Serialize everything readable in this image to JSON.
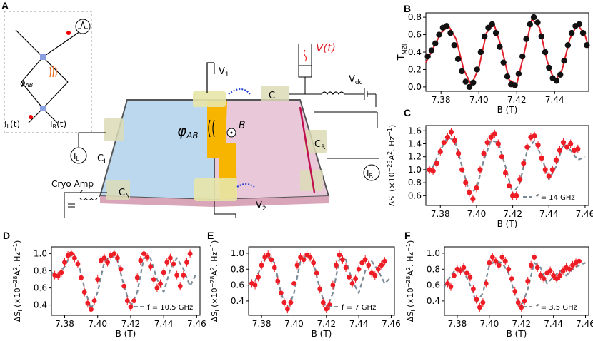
{
  "panel_labels": {
    "A": "A",
    "B": "B",
    "C": "C",
    "D": "D",
    "E": "E",
    "F": "F"
  },
  "schematic": {
    "phi_ab": "φ",
    "phi_ab_sub": "AB",
    "vphi": "φ",
    "vphi_sub": "AB",
    "B_vec": "B",
    "V1": "V",
    "V1_sub": "1",
    "V2": "V",
    "V2_sub": "2",
    "Vdc": "V",
    "Vdc_sub": "dc",
    "Vt": "V(t)",
    "CI": "C",
    "CI_sub": "I",
    "CL": "C",
    "CL_sub": "L",
    "CR": "C",
    "CR_sub": "R",
    "CN": "C",
    "CN_sub": "N",
    "IL": "I",
    "IL_sub": "L",
    "IR": "I",
    "IR_sub": "R",
    "ILt": "I",
    "ILt_sub": "L",
    "ILt_suffix": "(t)",
    "IRt": "I",
    "IRt_sub": "R",
    "IRt_suffix": "(t)",
    "cryo_amp": "Cryo Amp"
  },
  "chart_data": [
    {
      "id": "B",
      "type": "scatter",
      "xlabel": "B (T)",
      "ylabel": "T",
      "ylabel_sub": "MZI",
      "xlim": [
        7.372,
        7.458
      ],
      "ylim": [
        -0.05,
        0.85
      ],
      "xticks": [
        "7.38",
        "7.40",
        "7.42",
        "7.44"
      ],
      "xtick_values": [
        7.38,
        7.4,
        7.42,
        7.44
      ],
      "yticks": [
        "0.0",
        "0.2",
        "0.4",
        "0.6",
        "0.8"
      ],
      "ytick_values": [
        0,
        0.2,
        0.4,
        0.6,
        0.8
      ],
      "series": [
        {
          "name": "data",
          "x": [
            7.373,
            7.375,
            7.377,
            7.379,
            7.381,
            7.383,
            7.385,
            7.387,
            7.389,
            7.391,
            7.393,
            7.395,
            7.397,
            7.399,
            7.401,
            7.403,
            7.405,
            7.407,
            7.409,
            7.411,
            7.413,
            7.415,
            7.417,
            7.419,
            7.421,
            7.423,
            7.425,
            7.427,
            7.429,
            7.431,
            7.433,
            7.435,
            7.437,
            7.439,
            7.441,
            7.443,
            7.445,
            7.447,
            7.449,
            7.451,
            7.453,
            7.455,
            7.457
          ],
          "y": [
            0.35,
            0.42,
            0.5,
            0.6,
            0.68,
            0.7,
            0.62,
            0.48,
            0.32,
            0.18,
            0.06,
            0.0,
            0.05,
            0.2,
            0.4,
            0.58,
            0.68,
            0.72,
            0.62,
            0.46,
            0.28,
            0.12,
            0.03,
            0.02,
            0.15,
            0.35,
            0.55,
            0.72,
            0.8,
            0.74,
            0.58,
            0.4,
            0.22,
            0.1,
            0.07,
            0.14,
            0.3,
            0.48,
            0.62,
            0.7,
            0.72,
            0.62,
            0.48
          ]
        },
        {
          "name": "fit",
          "x": [
            7.372,
            7.376,
            7.38,
            7.384,
            7.388,
            7.392,
            7.396,
            7.4,
            7.404,
            7.408,
            7.412,
            7.416,
            7.42,
            7.424,
            7.428,
            7.432,
            7.436,
            7.44,
            7.444,
            7.448,
            7.452,
            7.456,
            7.458
          ],
          "y": [
            0.28,
            0.45,
            0.62,
            0.7,
            0.55,
            0.2,
            0.02,
            0.22,
            0.62,
            0.72,
            0.45,
            0.08,
            0.03,
            0.4,
            0.78,
            0.68,
            0.3,
            0.06,
            0.2,
            0.55,
            0.72,
            0.6,
            0.45
          ]
        }
      ]
    },
    {
      "id": "C",
      "type": "scatter",
      "xlabel": "B (T)",
      "ylabel": "ΔS",
      "ylabel_sub": "I",
      "ylabel_rest": " (×10",
      "ylabel_exp": "−28",
      "ylabel_units": "A",
      "ylabel_exp2": "2",
      "ylabel_units2": ". Hz",
      "ylabel_exp3": "−1",
      "ylabel_close": ")",
      "xlim": [
        7.372,
        7.462
      ],
      "ylim": [
        0.45,
        1.68
      ],
      "xticks": [
        "7.38",
        "7.40",
        "7.42",
        "7.44",
        "7.46"
      ],
      "xtick_values": [
        7.38,
        7.4,
        7.42,
        7.44,
        7.46
      ],
      "yticks": [
        "0.6",
        "0.8",
        "1.0",
        "1.2",
        "1.4",
        "1.6"
      ],
      "ytick_values": [
        0.6,
        0.8,
        1.0,
        1.2,
        1.4,
        1.6
      ],
      "legend": "f = 14 GHz",
      "series": [
        {
          "name": "data",
          "x": [
            7.374,
            7.376,
            7.378,
            7.38,
            7.382,
            7.384,
            7.386,
            7.388,
            7.39,
            7.392,
            7.394,
            7.396,
            7.398,
            7.4,
            7.402,
            7.404,
            7.406,
            7.408,
            7.41,
            7.412,
            7.414,
            7.416,
            7.418,
            7.42,
            7.422,
            7.424,
            7.426,
            7.428,
            7.43,
            7.432,
            7.434,
            7.436,
            7.438,
            7.44,
            7.442,
            7.444,
            7.446,
            7.448,
            7.45,
            7.452,
            7.454,
            7.456
          ],
          "y": [
            1.0,
            0.98,
            1.1,
            1.28,
            1.42,
            1.5,
            1.58,
            1.45,
            1.25,
            1.0,
            0.8,
            0.65,
            0.55,
            0.72,
            1.0,
            1.25,
            1.42,
            1.5,
            1.55,
            1.4,
            1.2,
            0.95,
            0.75,
            0.6,
            0.6,
            0.85,
            1.1,
            1.35,
            1.5,
            1.52,
            1.38,
            1.18,
            1.0,
            0.9,
            1.0,
            1.15,
            1.3,
            1.42,
            1.35,
            1.4,
            1.3,
            1.32
          ]
        },
        {
          "name": "fit",
          "x": [
            7.372,
            7.376,
            7.38,
            7.384,
            7.388,
            7.392,
            7.396,
            7.4,
            7.404,
            7.408,
            7.412,
            7.416,
            7.42,
            7.424,
            7.428,
            7.432,
            7.436,
            7.44,
            7.444,
            7.448,
            7.452,
            7.456,
            7.46
          ],
          "y": [
            0.98,
            1.05,
            1.3,
            1.5,
            1.45,
            1.05,
            0.65,
            0.7,
            1.15,
            1.45,
            1.42,
            1.05,
            0.62,
            0.8,
            1.3,
            1.45,
            1.2,
            0.85,
            1.05,
            1.4,
            1.3,
            1.15,
            1.2
          ]
        }
      ]
    },
    {
      "id": "D",
      "type": "scatter",
      "xlabel": "B (T)",
      "ylabel": "ΔS",
      "ylabel_sub": "I",
      "ylabel_rest": " (×10",
      "ylabel_exp": "−28",
      "ylabel_units": "A",
      "ylabel_exp2": "2",
      "ylabel_units2": ". Hz",
      "ylabel_exp3": "−1",
      "ylabel_close": ")",
      "xlim": [
        7.372,
        7.462
      ],
      "ylim": [
        0.28,
        1.08
      ],
      "xticks": [
        "7.38",
        "7.40",
        "7.42",
        "7.44",
        "7.46"
      ],
      "xtick_values": [
        7.38,
        7.4,
        7.42,
        7.44,
        7.46
      ],
      "yticks": [
        "0.4",
        "0.6",
        "0.8",
        "1.0"
      ],
      "ytick_values": [
        0.4,
        0.6,
        0.8,
        1.0
      ],
      "legend": "f = 10.5 GHz",
      "series": [
        {
          "name": "data",
          "x": [
            7.374,
            7.376,
            7.378,
            7.38,
            7.382,
            7.384,
            7.386,
            7.388,
            7.39,
            7.392,
            7.394,
            7.396,
            7.398,
            7.4,
            7.402,
            7.404,
            7.406,
            7.408,
            7.41,
            7.412,
            7.414,
            7.416,
            7.418,
            7.42,
            7.422,
            7.424,
            7.426,
            7.428,
            7.43,
            7.432,
            7.434,
            7.436,
            7.438,
            7.44,
            7.442,
            7.444,
            7.446,
            7.448,
            7.45,
            7.452,
            7.454,
            7.456
          ],
          "y": [
            0.75,
            0.74,
            0.78,
            0.9,
            0.98,
            1.0,
            0.95,
            0.88,
            0.72,
            0.55,
            0.42,
            0.35,
            0.45,
            0.7,
            0.92,
            0.95,
            0.9,
            0.98,
            1.0,
            0.95,
            0.82,
            0.62,
            0.45,
            0.38,
            0.45,
            0.72,
            0.92,
            1.0,
            0.96,
            0.85,
            0.7,
            0.6,
            0.65,
            0.78,
            0.9,
            0.95,
            0.88,
            0.75,
            0.62,
            0.75,
            0.9,
            1.0
          ]
        },
        {
          "name": "fit",
          "x": [
            7.372,
            7.376,
            7.38,
            7.384,
            7.388,
            7.392,
            7.396,
            7.4,
            7.404,
            7.408,
            7.412,
            7.416,
            7.42,
            7.424,
            7.428,
            7.432,
            7.436,
            7.44,
            7.444,
            7.448,
            7.452,
            7.456,
            7.46
          ],
          "y": [
            0.78,
            0.75,
            0.85,
            1.0,
            0.92,
            0.6,
            0.35,
            0.55,
            0.9,
            0.98,
            0.92,
            0.62,
            0.38,
            0.55,
            0.95,
            0.95,
            0.7,
            0.55,
            0.82,
            0.95,
            0.82,
            0.62,
            0.78
          ]
        }
      ]
    },
    {
      "id": "E",
      "type": "scatter",
      "xlabel": "B (T)",
      "ylabel": "ΔS",
      "ylabel_sub": "I",
      "ylabel_rest": " (×10",
      "ylabel_exp": "−28",
      "ylabel_units": "A",
      "ylabel_exp2": "2",
      "ylabel_units2": ". Hz",
      "ylabel_exp3": "−1",
      "ylabel_close": ")",
      "xlim": [
        7.372,
        7.462
      ],
      "ylim": [
        0.22,
        1.08
      ],
      "xticks": [
        "7.38",
        "7.40",
        "7.42",
        "7.44",
        "7.46"
      ],
      "xtick_values": [
        7.38,
        7.4,
        7.42,
        7.44,
        7.46
      ],
      "yticks": [
        "0.4",
        "0.6",
        "0.8",
        "1.0"
      ],
      "ytick_values": [
        0.4,
        0.6,
        0.8,
        1.0
      ],
      "legend": "f = 7 GHz",
      "series": [
        {
          "name": "data",
          "x": [
            7.374,
            7.376,
            7.378,
            7.38,
            7.382,
            7.384,
            7.386,
            7.388,
            7.39,
            7.392,
            7.394,
            7.396,
            7.398,
            7.4,
            7.402,
            7.404,
            7.406,
            7.408,
            7.41,
            7.412,
            7.414,
            7.416,
            7.418,
            7.42,
            7.422,
            7.424,
            7.426,
            7.428,
            7.43,
            7.432,
            7.434,
            7.436,
            7.438,
            7.44,
            7.442,
            7.444,
            7.446,
            7.448,
            7.45,
            7.452,
            7.454,
            7.456
          ],
          "y": [
            0.62,
            0.6,
            0.7,
            0.85,
            0.95,
            0.98,
            0.92,
            0.82,
            0.65,
            0.5,
            0.38,
            0.3,
            0.38,
            0.62,
            0.85,
            0.95,
            0.92,
            0.98,
            0.95,
            0.88,
            0.75,
            0.55,
            0.38,
            0.3,
            0.35,
            0.6,
            0.85,
            0.98,
            0.92,
            0.82,
            0.7,
            0.62,
            0.68,
            0.8,
            0.88,
            0.92,
            0.85,
            0.75,
            0.72,
            0.8,
            0.85,
            0.9
          ]
        },
        {
          "name": "fit",
          "x": [
            7.372,
            7.376,
            7.38,
            7.384,
            7.388,
            7.392,
            7.396,
            7.4,
            7.404,
            7.408,
            7.412,
            7.416,
            7.42,
            7.424,
            7.428,
            7.432,
            7.436,
            7.44,
            7.444,
            7.448,
            7.452,
            7.456,
            7.46
          ],
          "y": [
            0.62,
            0.65,
            0.85,
            0.98,
            0.88,
            0.5,
            0.28,
            0.5,
            0.9,
            0.98,
            0.88,
            0.55,
            0.3,
            0.5,
            0.92,
            0.92,
            0.65,
            0.5,
            0.78,
            0.9,
            0.78,
            0.62,
            0.7
          ]
        }
      ]
    },
    {
      "id": "F",
      "type": "scatter",
      "xlabel": "B (T)",
      "ylabel": "ΔS",
      "ylabel_sub": "I",
      "ylabel_rest": " (×10",
      "ylabel_exp": "−28",
      "ylabel_units": "A",
      "ylabel_exp2": "2",
      "ylabel_units2": ". Hz",
      "ylabel_exp3": "−1",
      "ylabel_close": ")",
      "xlim": [
        7.372,
        7.462
      ],
      "ylim": [
        0.22,
        1.08
      ],
      "xticks": [
        "7.38",
        "7.40",
        "7.42",
        "7.44",
        "7.46"
      ],
      "xtick_values": [
        7.38,
        7.4,
        7.42,
        7.44,
        7.46
      ],
      "yticks": [
        "0.4",
        "0.6",
        "0.8",
        "1.0"
      ],
      "ytick_values": [
        0.4,
        0.6,
        0.8,
        1.0
      ],
      "legend": "f = 3.5 GHz",
      "series": [
        {
          "name": "data",
          "x": [
            7.374,
            7.376,
            7.378,
            7.38,
            7.382,
            7.384,
            7.386,
            7.388,
            7.39,
            7.392,
            7.394,
            7.396,
            7.398,
            7.4,
            7.402,
            7.404,
            7.406,
            7.408,
            7.41,
            7.412,
            7.414,
            7.416,
            7.418,
            7.42,
            7.422,
            7.424,
            7.426,
            7.428,
            7.43,
            7.432,
            7.434,
            7.436,
            7.438,
            7.44,
            7.442,
            7.444,
            7.446,
            7.448,
            7.45,
            7.452,
            7.454,
            7.456
          ],
          "y": [
            0.62,
            0.58,
            0.72,
            0.8,
            0.78,
            0.82,
            0.75,
            0.7,
            0.55,
            0.42,
            0.32,
            0.38,
            0.62,
            0.88,
            0.95,
            0.9,
            0.85,
            0.95,
            0.9,
            0.8,
            0.68,
            0.52,
            0.38,
            0.32,
            0.4,
            0.65,
            0.85,
            0.95,
            0.82,
            0.72,
            0.68,
            0.75,
            0.78,
            0.72,
            0.68,
            0.72,
            0.78,
            0.82,
            0.8,
            0.85,
            0.88,
            0.9
          ]
        },
        {
          "name": "fit",
          "x": [
            7.372,
            7.376,
            7.38,
            7.384,
            7.388,
            7.392,
            7.396,
            7.4,
            7.404,
            7.408,
            7.412,
            7.416,
            7.42,
            7.424,
            7.428,
            7.432,
            7.436,
            7.44,
            7.444,
            7.448,
            7.452,
            7.456,
            7.46
          ],
          "y": [
            0.58,
            0.72,
            0.82,
            0.78,
            0.6,
            0.38,
            0.5,
            0.85,
            0.9,
            0.88,
            0.75,
            0.48,
            0.32,
            0.55,
            0.88,
            0.82,
            0.62,
            0.7,
            0.78,
            0.72,
            0.8,
            0.85,
            0.88
          ]
        }
      ]
    }
  ]
}
